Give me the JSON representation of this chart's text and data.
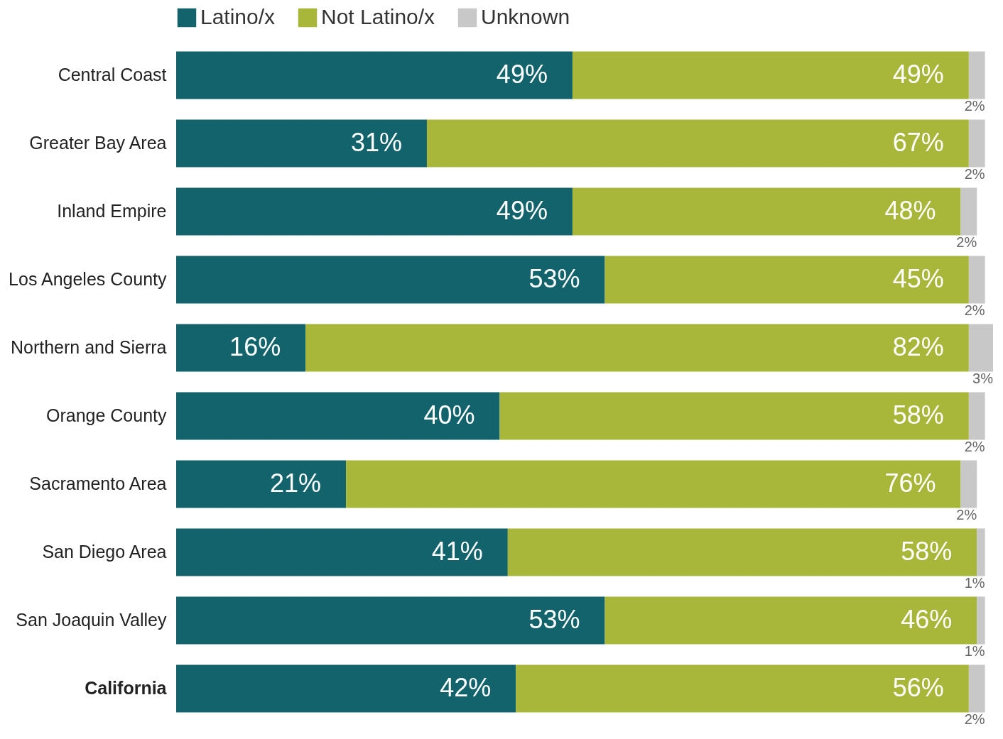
{
  "chart_data": {
    "type": "bar",
    "orientation": "horizontal",
    "stacked": true,
    "legend": "top",
    "grid": false,
    "categories": [
      "Central Coast",
      "Greater Bay Area",
      "Inland Empire",
      "Los Angeles County",
      "Northern and Sierra",
      "Orange County",
      "Sacramento Area",
      "San Diego Area",
      "San Joaquin Valley",
      "California"
    ],
    "series": [
      {
        "name": "Latino/x",
        "color": "#12636b",
        "values": [
          49,
          31,
          49,
          53,
          16,
          40,
          21,
          41,
          53,
          42
        ],
        "value_labels": [
          "49%",
          "31%",
          "49%",
          "53%",
          "16%",
          "40%",
          "21%",
          "41%",
          "53%",
          "42%"
        ]
      },
      {
        "name": "Not Latino/x",
        "color": "#a8b73a",
        "values": [
          49,
          67,
          48,
          45,
          82,
          58,
          76,
          58,
          46,
          56
        ],
        "value_labels": [
          "49%",
          "67%",
          "48%",
          "45%",
          "82%",
          "58%",
          "76%",
          "58%",
          "46%",
          "56%"
        ]
      },
      {
        "name": "Unknown",
        "color": "#c8c8c8",
        "values": [
          2,
          2,
          2,
          2,
          3,
          2,
          2,
          1,
          1,
          2
        ],
        "value_labels": [
          "2%",
          "2%",
          "2%",
          "2%",
          "3%",
          "2%",
          "2%",
          "1%",
          "1%",
          "2%"
        ]
      }
    ]
  }
}
